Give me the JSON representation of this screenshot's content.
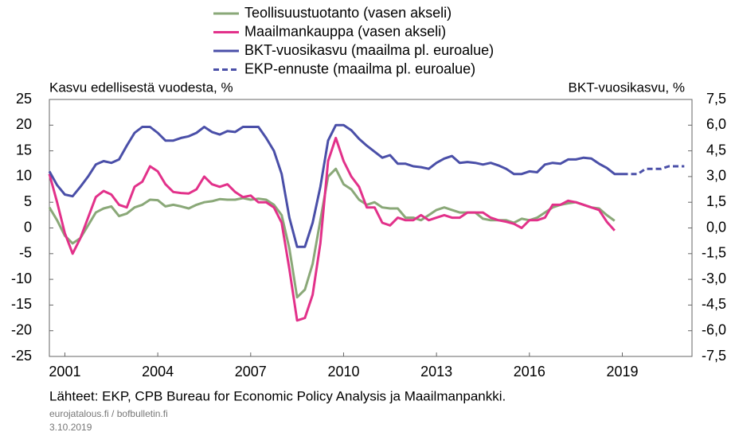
{
  "chart_data": {
    "type": "line",
    "y_label": "Kasvu edellisestä vuodesta, %",
    "y2_label": "BKT-vuosikasvu, %",
    "source": "Lähteet: EKP, CPB Bureau for Economic Policy Analysis ja Maailmanpankki.",
    "site": "eurojatalous.fi / bofbulletin.fi",
    "date": "3.10.2019",
    "legend": "top",
    "xlim": [
      2000.5,
      2021.25
    ],
    "xticks": [
      2001,
      2004,
      2007,
      2010,
      2013,
      2016,
      2019
    ],
    "ylim": [
      -25,
      25
    ],
    "yticks": [
      -25,
      -20,
      -15,
      -10,
      -5,
      0,
      5,
      10,
      15,
      20,
      25
    ],
    "y2lim": [
      -7.5,
      7.5
    ],
    "y2ticks": [
      {
        "value": -7.5,
        "label": "-7,5"
      },
      {
        "value": -6,
        "label": "-6,0"
      },
      {
        "value": -4.5,
        "label": "-4,5"
      },
      {
        "value": -3,
        "label": "-3,0"
      },
      {
        "value": -1.5,
        "label": "-1,5"
      },
      {
        "value": 0,
        "label": "0,0"
      },
      {
        "value": 1.5,
        "label": "1,5"
      },
      {
        "value": 3,
        "label": "3,0"
      },
      {
        "value": 4.5,
        "label": "4,5"
      },
      {
        "value": 6,
        "label": "6,0"
      },
      {
        "value": 7.5,
        "label": "7,5"
      }
    ],
    "x": [
      2000.5,
      2000.75,
      2001,
      2001.25,
      2001.5,
      2001.75,
      2002,
      2002.25,
      2002.5,
      2002.75,
      2003,
      2003.25,
      2003.5,
      2003.75,
      2004,
      2004.25,
      2004.5,
      2004.75,
      2005,
      2005.25,
      2005.5,
      2005.75,
      2006,
      2006.25,
      2006.5,
      2006.75,
      2007,
      2007.25,
      2007.5,
      2007.75,
      2008,
      2008.25,
      2008.5,
      2008.75,
      2009,
      2009.25,
      2009.5,
      2009.75,
      2010,
      2010.25,
      2010.5,
      2010.75,
      2011,
      2011.25,
      2011.5,
      2011.75,
      2012,
      2012.25,
      2012.5,
      2012.75,
      2013,
      2013.25,
      2013.5,
      2013.75,
      2014,
      2014.25,
      2014.5,
      2014.75,
      2015,
      2015.25,
      2015.5,
      2015.75,
      2016,
      2016.25,
      2016.5,
      2016.75,
      2017,
      2017.25,
      2017.5,
      2017.75,
      2018,
      2018.25,
      2018.5,
      2018.75,
      2019,
      2019.25,
      2019.5,
      2019.75,
      2020,
      2020.25,
      2020.5,
      2020.75,
      2021
    ],
    "series": [
      {
        "name": "Teollisuustuotanto (vasen akseli)",
        "color": "#8aa878",
        "dashed": false,
        "values": [
          4,
          1.5,
          -1.5,
          -3,
          -2,
          0.5,
          3,
          3.8,
          4.2,
          2.3,
          2.8,
          4,
          4.5,
          5.5,
          5.4,
          4.2,
          4.5,
          4.2,
          3.8,
          4.5,
          5,
          5.2,
          5.6,
          5.5,
          5.5,
          5.8,
          5.5,
          5.7,
          5.5,
          4.5,
          2.5,
          -4,
          -13.5,
          -12,
          -7,
          1.5,
          10,
          11.5,
          8.5,
          7.5,
          5.5,
          4.5,
          5,
          4,
          3.8,
          3.8,
          2,
          2,
          1.5,
          2.5,
          3.5,
          4,
          3.5,
          3,
          3,
          3,
          1.8,
          1.5,
          1.5,
          1.5,
          1,
          1.8,
          1.5,
          2,
          3,
          4,
          4.5,
          4.8,
          5,
          4.5,
          4,
          3.8,
          2.5,
          1.4,
          null,
          null,
          null,
          null,
          null,
          null,
          null,
          null,
          null
        ]
      },
      {
        "name": "Maailmankauppa (vasen akseli)",
        "color": "#e2318a",
        "dashed": false,
        "values": [
          10.5,
          5,
          -1,
          -5,
          -2,
          2,
          6,
          7.2,
          6.5,
          4.5,
          4,
          8,
          9,
          12,
          11,
          8.5,
          7,
          6.8,
          6.7,
          7.5,
          10,
          8.5,
          8,
          8.5,
          7,
          6,
          6.3,
          5,
          5,
          4,
          1,
          -8,
          -18,
          -17.5,
          -13,
          -3,
          13,
          17.5,
          13,
          10,
          8,
          4,
          4,
          1,
          0.5,
          2,
          1.5,
          1.5,
          2.5,
          1.5,
          2,
          2.5,
          2,
          2,
          3,
          3,
          3,
          2,
          1.5,
          1.2,
          0.8,
          0,
          1.5,
          1.5,
          2,
          4.5,
          4.5,
          5.3,
          5,
          4.5,
          4,
          3.5,
          1.2,
          -0.5,
          null,
          null,
          null,
          null,
          null,
          null,
          null,
          null,
          null
        ]
      },
      {
        "name": "BKT-vuosikasvu (maailma pl. euroalue)",
        "color": "#4a4fa8",
        "dashed": false,
        "axis": "y2",
        "values": [
          3.3,
          2.5,
          1.95,
          1.85,
          2.4,
          3.0,
          3.7,
          3.9,
          3.8,
          4.0,
          4.8,
          5.55,
          5.9,
          5.9,
          5.55,
          5.1,
          5.1,
          5.25,
          5.35,
          5.55,
          5.9,
          5.6,
          5.45,
          5.65,
          5.6,
          5.9,
          5.9,
          5.9,
          5.25,
          4.5,
          3.15,
          0.6,
          -1.1,
          -1.1,
          0.3,
          2.4,
          5.1,
          6.0,
          6.0,
          5.7,
          5.2,
          4.8,
          4.45,
          4.1,
          4.25,
          3.75,
          3.75,
          3.6,
          3.55,
          3.45,
          3.8,
          4.05,
          4.2,
          3.8,
          3.85,
          3.8,
          3.7,
          3.8,
          3.65,
          3.45,
          3.15,
          3.15,
          3.3,
          3.25,
          3.7,
          3.8,
          3.75,
          4.0,
          4.0,
          4.1,
          4.05,
          3.75,
          3.5,
          3.15,
          3.15,
          null,
          null,
          null,
          null,
          null,
          null,
          null,
          null
        ]
      },
      {
        "name": "EKP-ennuste (maailma pl. euroalue)",
        "color": "#4a4fa8",
        "dashed": true,
        "axis": "y2",
        "values": [
          null,
          null,
          null,
          null,
          null,
          null,
          null,
          null,
          null,
          null,
          null,
          null,
          null,
          null,
          null,
          null,
          null,
          null,
          null,
          null,
          null,
          null,
          null,
          null,
          null,
          null,
          null,
          null,
          null,
          null,
          null,
          null,
          null,
          null,
          null,
          null,
          null,
          null,
          null,
          null,
          null,
          null,
          null,
          null,
          null,
          null,
          null,
          null,
          null,
          null,
          null,
          null,
          null,
          null,
          null,
          null,
          null,
          null,
          null,
          null,
          null,
          null,
          null,
          null,
          null,
          null,
          null,
          null,
          null,
          null,
          null,
          null,
          null,
          null,
          3.15,
          3.15,
          3.15,
          3.45,
          3.45,
          3.45,
          3.6,
          3.6,
          3.6
        ]
      }
    ]
  }
}
